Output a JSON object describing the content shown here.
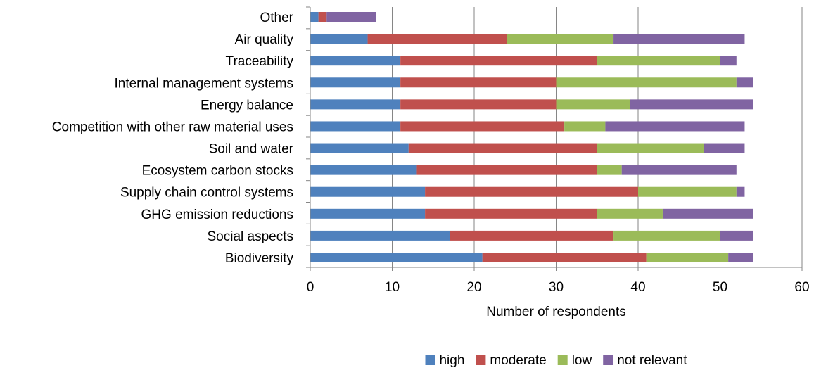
{
  "chart_data": {
    "type": "bar",
    "orientation": "horizontal",
    "stacked": true,
    "title": "",
    "xlabel": "Number of respondents",
    "ylabel": "",
    "xlim": [
      0,
      60
    ],
    "xticks": [
      0,
      10,
      20,
      30,
      40,
      50,
      60
    ],
    "grid": "vertical",
    "legend_position": "bottom",
    "categories": [
      "Other",
      "Air quality",
      "Traceability",
      "Internal management systems",
      "Energy balance",
      "Competition with other raw material uses",
      "Soil and water",
      "Ecosystem carbon stocks",
      "Supply chain control systems",
      "GHG emission reductions",
      "Social aspects",
      "Biodiversity"
    ],
    "series": [
      {
        "name": "high",
        "color": "#4F81BD",
        "values": [
          1,
          7,
          11,
          11,
          11,
          11,
          12,
          13,
          14,
          14,
          17,
          21
        ]
      },
      {
        "name": "moderate",
        "color": "#C0504D",
        "values": [
          1,
          17,
          24,
          19,
          19,
          20,
          23,
          22,
          26,
          21,
          20,
          20
        ]
      },
      {
        "name": "low",
        "color": "#9BBB59",
        "values": [
          0,
          13,
          15,
          22,
          9,
          5,
          13,
          3,
          12,
          8,
          13,
          10
        ]
      },
      {
        "name": "not relevant",
        "color": "#8064A2",
        "values": [
          6,
          16,
          2,
          2,
          15,
          17,
          5,
          14,
          1,
          11,
          4,
          3
        ]
      }
    ]
  }
}
